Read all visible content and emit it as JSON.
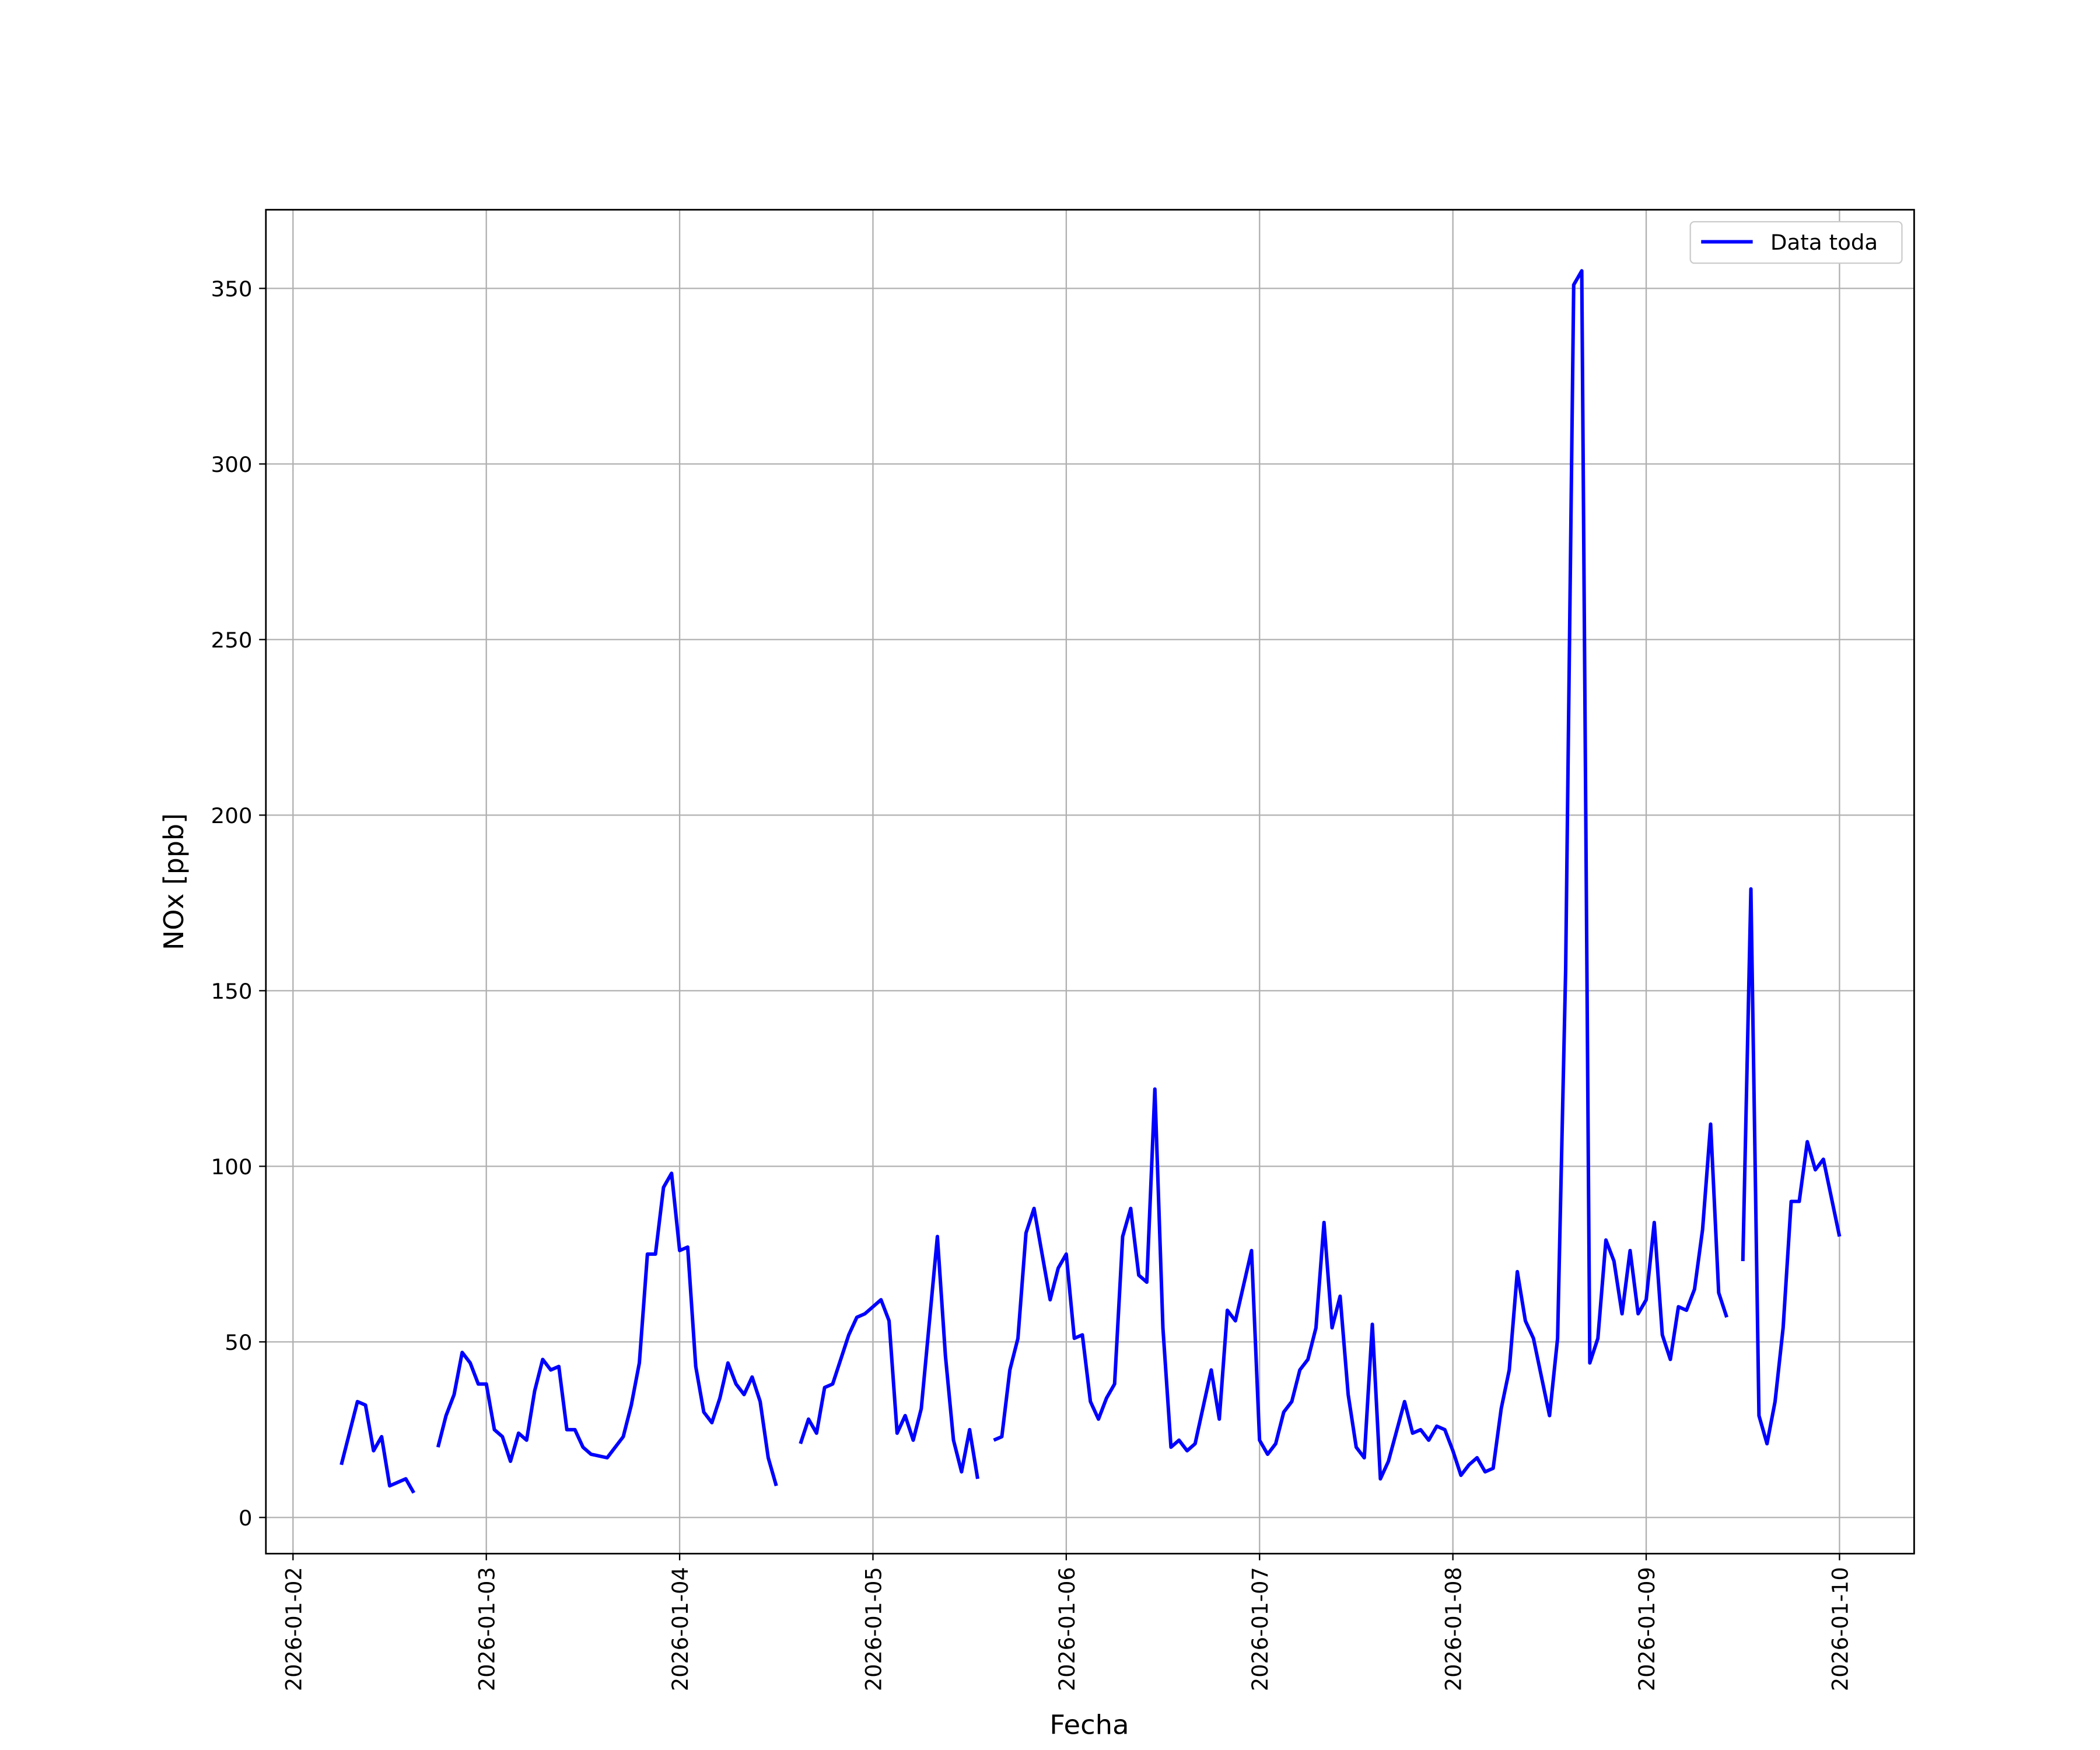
{
  "chart_data": {
    "type": "line",
    "x_label": "Fecha",
    "y_label": "NOx [ppb]",
    "xlim": [
      "2026-01-01 20:38",
      "2026-01-10 09:16"
    ],
    "xticks": [
      "2026-01-02",
      "2026-01-03",
      "2026-01-04",
      "2026-01-05",
      "2026-01-06",
      "2026-01-07",
      "2026-01-08",
      "2026-01-09",
      "2026-01-10"
    ],
    "ylim": [
      -10.3,
      372.4
    ],
    "yticks": [
      0,
      50,
      100,
      150,
      200,
      250,
      300,
      350
    ],
    "grid": true,
    "legend": "upper right",
    "x": [
      "2026-01-02 06:00",
      "2026-01-02 08:00",
      "2026-01-02 09:00",
      "2026-01-02 10:00",
      "2026-01-02 11:00",
      "2026-01-02 12:00",
      "2026-01-02 14:00",
      "2026-01-02 15:00",
      "2026-01-02 16:00",
      "2026-01-02 18:00",
      "2026-01-02 19:00",
      "2026-01-02 20:00",
      "2026-01-02 21:00",
      "2026-01-02 22:00",
      "2026-01-02 23:00",
      "2026-01-03 00:00",
      "2026-01-03 01:00",
      "2026-01-03 02:00",
      "2026-01-03 03:00",
      "2026-01-03 04:00",
      "2026-01-03 05:00",
      "2026-01-03 06:00",
      "2026-01-03 07:00",
      "2026-01-03 08:00",
      "2026-01-03 09:00",
      "2026-01-03 10:00",
      "2026-01-03 11:00",
      "2026-01-03 12:00",
      "2026-01-03 13:00",
      "2026-01-03 15:00",
      "2026-01-03 17:00",
      "2026-01-03 18:00",
      "2026-01-03 19:00",
      "2026-01-03 20:00",
      "2026-01-03 21:00",
      "2026-01-03 22:00",
      "2026-01-03 23:00",
      "2026-01-04 00:00",
      "2026-01-04 01:00",
      "2026-01-04 02:00",
      "2026-01-04 03:00",
      "2026-01-04 04:00",
      "2026-01-04 05:00",
      "2026-01-04 06:00",
      "2026-01-04 07:00",
      "2026-01-04 08:00",
      "2026-01-04 09:00",
      "2026-01-04 10:00",
      "2026-01-04 11:00",
      "2026-01-04 12:00",
      "2026-01-04 13:00",
      "2026-01-04 15:00",
      "2026-01-04 16:00",
      "2026-01-04 17:00",
      "2026-01-04 18:00",
      "2026-01-04 19:00",
      "2026-01-04 21:00",
      "2026-01-04 22:00",
      "2026-01-04 23:00",
      "2026-01-05 01:00",
      "2026-01-05 02:00",
      "2026-01-05 03:00",
      "2026-01-05 04:00",
      "2026-01-05 05:00",
      "2026-01-05 06:00",
      "2026-01-05 08:00",
      "2026-01-05 09:00",
      "2026-01-05 10:00",
      "2026-01-05 11:00",
      "2026-01-05 12:00",
      "2026-01-05 13:00",
      "2026-01-05 14:00",
      "2026-01-05 15:00",
      "2026-01-05 16:00",
      "2026-01-05 17:00",
      "2026-01-05 18:00",
      "2026-01-05 19:00",
      "2026-01-05 20:00",
      "2026-01-05 21:00",
      "2026-01-05 22:00",
      "2026-01-05 23:00",
      "2026-01-06 00:00",
      "2026-01-06 01:00",
      "2026-01-06 02:00",
      "2026-01-06 03:00",
      "2026-01-06 04:00",
      "2026-01-06 05:00",
      "2026-01-06 06:00",
      "2026-01-06 07:00",
      "2026-01-06 08:00",
      "2026-01-06 09:00",
      "2026-01-06 10:00",
      "2026-01-06 11:00",
      "2026-01-06 12:00",
      "2026-01-06 13:00",
      "2026-01-06 14:00",
      "2026-01-06 15:00",
      "2026-01-06 16:00",
      "2026-01-06 18:00",
      "2026-01-06 19:00",
      "2026-01-06 20:00",
      "2026-01-06 21:00",
      "2026-01-06 23:00",
      "2026-01-07 00:00",
      "2026-01-07 01:00",
      "2026-01-07 02:00",
      "2026-01-07 03:00",
      "2026-01-07 04:00",
      "2026-01-07 05:00",
      "2026-01-07 06:00",
      "2026-01-07 07:00",
      "2026-01-07 08:00",
      "2026-01-07 09:00",
      "2026-01-07 10:00",
      "2026-01-07 11:00",
      "2026-01-07 12:00",
      "2026-01-07 13:00",
      "2026-01-07 14:00",
      "2026-01-07 15:00",
      "2026-01-07 16:00",
      "2026-01-07 18:00",
      "2026-01-07 19:00",
      "2026-01-07 20:00",
      "2026-01-07 21:00",
      "2026-01-07 22:00",
      "2026-01-07 23:00",
      "2026-01-08 00:00",
      "2026-01-08 01:00",
      "2026-01-08 02:00",
      "2026-01-08 03:00",
      "2026-01-08 04:00",
      "2026-01-08 05:00",
      "2026-01-08 06:00",
      "2026-01-08 07:00",
      "2026-01-08 08:00",
      "2026-01-08 09:00",
      "2026-01-08 10:00",
      "2026-01-08 12:00",
      "2026-01-08 13:00",
      "2026-01-08 14:00",
      "2026-01-08 15:00",
      "2026-01-08 16:00",
      "2026-01-08 17:00",
      "2026-01-08 18:00",
      "2026-01-08 19:00",
      "2026-01-08 20:00",
      "2026-01-08 21:00",
      "2026-01-08 22:00",
      "2026-01-08 23:00",
      "2026-01-09 00:00",
      "2026-01-09 01:00",
      "2026-01-09 02:00",
      "2026-01-09 03:00",
      "2026-01-09 04:00",
      "2026-01-09 05:00",
      "2026-01-09 06:00",
      "2026-01-09 07:00",
      "2026-01-09 08:00",
      "2026-01-09 09:00",
      "2026-01-09 10:00",
      "2026-01-09 11:00",
      "2026-01-09 12:00",
      "2026-01-09 13:00",
      "2026-01-09 14:00",
      "2026-01-09 15:00",
      "2026-01-09 16:00",
      "2026-01-09 17:00",
      "2026-01-09 18:00",
      "2026-01-09 19:00",
      "2026-01-09 20:00",
      "2026-01-09 21:00",
      "2026-01-09 22:00",
      "2026-01-10 00:00"
    ],
    "series": [
      {
        "name": "Data toda",
        "color": "#0000ff",
        "values": [
          15,
          33,
          32,
          19,
          23,
          9,
          11,
          7,
          null,
          20,
          29,
          35,
          47,
          44,
          38,
          38,
          25,
          23,
          16,
          24,
          22,
          36,
          45,
          42,
          43,
          25,
          25,
          20,
          18,
          17,
          23,
          32,
          44,
          75,
          75,
          94,
          98,
          76,
          77,
          43,
          30,
          27,
          34,
          44,
          38,
          35,
          40,
          33,
          17,
          9,
          null,
          21,
          28,
          24,
          37,
          38,
          52,
          57,
          58,
          62,
          56,
          24,
          29,
          22,
          31,
          80,
          46,
          22,
          13,
          25,
          11,
          null,
          22,
          23,
          42,
          51,
          81,
          88,
          75,
          62,
          71,
          75,
          51,
          52,
          33,
          28,
          34,
          38,
          80,
          88,
          69,
          67,
          122,
          54,
          20,
          22,
          19,
          21,
          42,
          28,
          59,
          56,
          76,
          22,
          18,
          21,
          30,
          33,
          42,
          45,
          54,
          84,
          54,
          63,
          35,
          20,
          17,
          55,
          11,
          16,
          33,
          24,
          25,
          22,
          26,
          25,
          19,
          12,
          15,
          17,
          13,
          14,
          31,
          42,
          70,
          56,
          51,
          29,
          51,
          156,
          351,
          355,
          44,
          51,
          79,
          73,
          58,
          76,
          58,
          62,
          84,
          52,
          45,
          60,
          59,
          65,
          82,
          112,
          64,
          57,
          null,
          73,
          179,
          29,
          21,
          33,
          54,
          90,
          90,
          107,
          99,
          102,
          80
        ]
      }
    ]
  }
}
